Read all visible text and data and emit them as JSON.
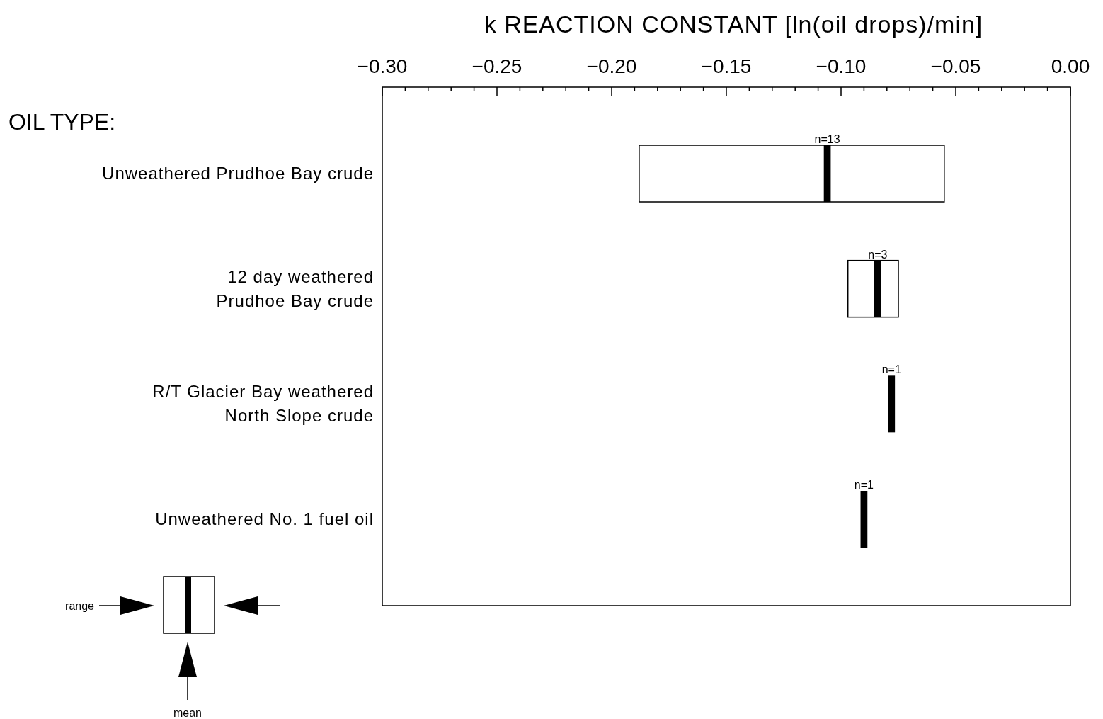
{
  "chart_data": {
    "type": "bar",
    "orientation": "horizontal",
    "xlabel": "k REACTION CONSTANT [ln(oil drops)/min]",
    "ylabel": "OIL TYPE:",
    "categories": [
      "Unweathered Prudhoe Bay crude",
      "12 day weathered\nPrudhoe Bay crude",
      "R/T Glacier Bay weathered\nNorth Slope crude",
      "Unweathered No. 1 fuel oil"
    ],
    "xlim": [
      -0.3,
      0.0
    ],
    "xticks": [
      {
        "value": -0.3,
        "label": "−0.30"
      },
      {
        "value": -0.29,
        "label": null
      },
      {
        "value": -0.28,
        "label": null
      },
      {
        "value": -0.27,
        "label": null
      },
      {
        "value": -0.26,
        "label": null
      },
      {
        "value": -0.25,
        "label": "−0.25"
      },
      {
        "value": -0.24,
        "label": null
      },
      {
        "value": -0.23,
        "label": null
      },
      {
        "value": -0.22,
        "label": null
      },
      {
        "value": -0.21,
        "label": null
      },
      {
        "value": -0.2,
        "label": "−0.20"
      },
      {
        "value": -0.19,
        "label": null
      },
      {
        "value": -0.18,
        "label": null
      },
      {
        "value": -0.17,
        "label": null
      },
      {
        "value": -0.16,
        "label": null
      },
      {
        "value": -0.15,
        "label": "−0.15"
      },
      {
        "value": -0.14,
        "label": null
      },
      {
        "value": -0.13,
        "label": null
      },
      {
        "value": -0.12,
        "label": null
      },
      {
        "value": -0.11,
        "label": null
      },
      {
        "value": -0.1,
        "label": "−0.10"
      },
      {
        "value": -0.09,
        "label": null
      },
      {
        "value": -0.08,
        "label": null
      },
      {
        "value": -0.07,
        "label": null
      },
      {
        "value": -0.06,
        "label": null
      },
      {
        "value": -0.05,
        "label": "−0.05"
      },
      {
        "value": -0.04,
        "label": null
      },
      {
        "value": -0.03,
        "label": null
      },
      {
        "value": -0.02,
        "label": null
      },
      {
        "value": -0.01,
        "label": null
      },
      {
        "value": 0.0,
        "label": "0.00"
      }
    ],
    "series": [
      {
        "color": "#ffffff",
        "base": [
          -0.188,
          -0.097,
          null,
          null
        ],
        "values": [
          0.133,
          0.022,
          null,
          null
        ]
      },
      {
        "color": "#000000",
        "base": [
          -0.1075,
          -0.0855,
          -0.0795,
          -0.0915
        ],
        "values": [
          0.003,
          0.003,
          0.003,
          0.003
        ]
      }
    ],
    "annotations": [
      "range",
      "mean",
      {
        "text": "n=13",
        "x": -0.106,
        "y": "Unweathered Prudhoe Bay crude"
      },
      {
        "text": "n=3",
        "x": -0.084,
        "y": "12 day weathered\nPrudhoe Bay crude"
      },
      {
        "text": "n=1",
        "x": -0.078,
        "y": "R/T Glacier Bay weathered\nNorth Slope crude"
      },
      {
        "text": "n=1",
        "x": -0.09,
        "y": "Unweathered No. 1 fuel oil"
      }
    ]
  }
}
